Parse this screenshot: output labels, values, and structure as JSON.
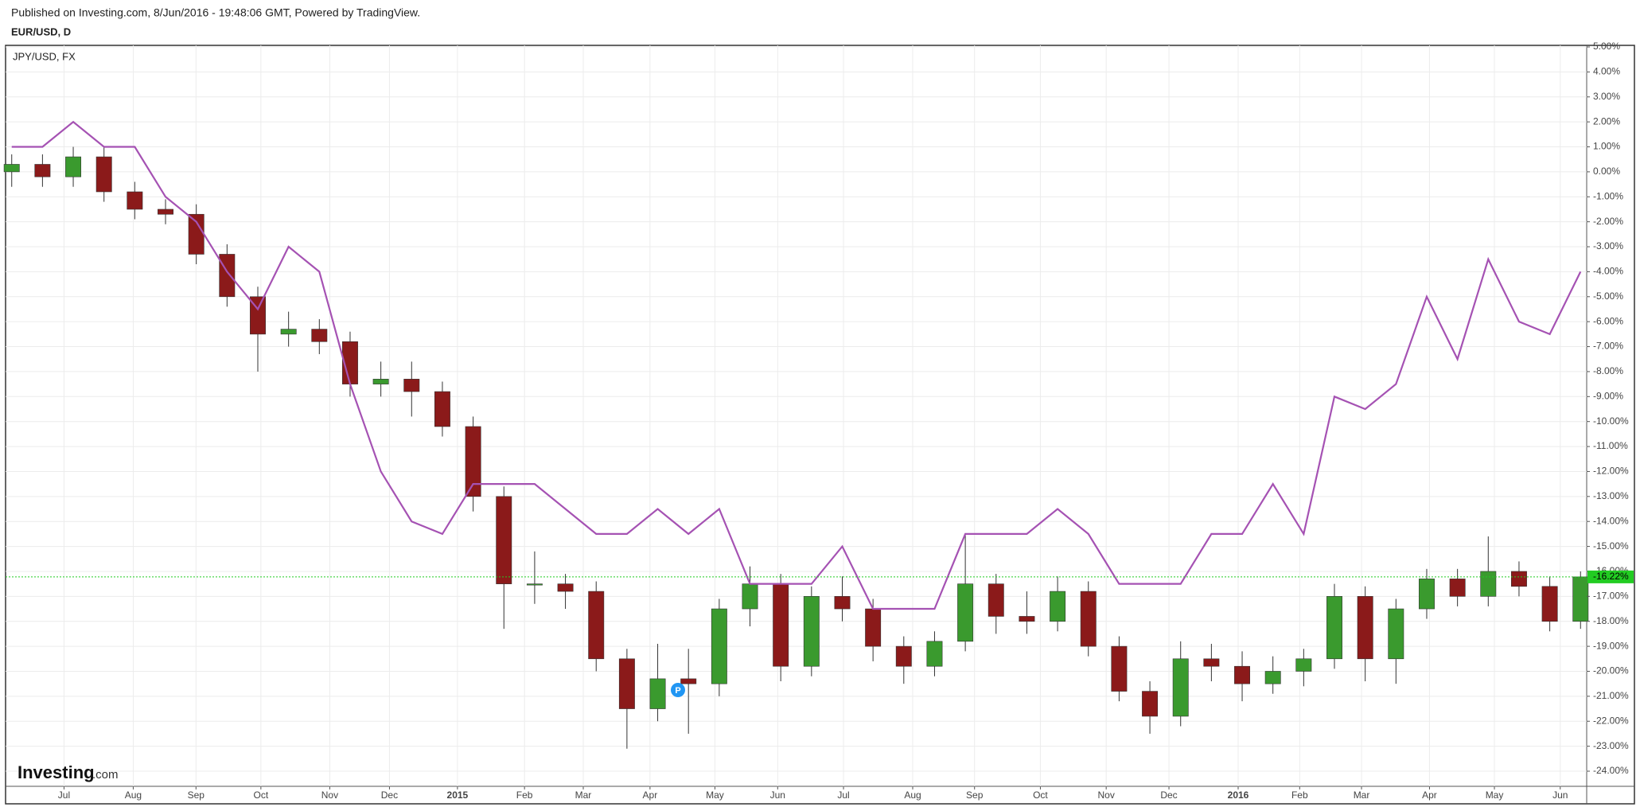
{
  "chart_data": {
    "type": "candlestick",
    "title": "Published on Investing.com, 8/Jun/2016 - 19:48:06 GMT, Powered by TradingView.",
    "logo": {
      "name": "Investing",
      "suffix": ".com"
    },
    "event_marker": "P",
    "grid": true,
    "xlim": [
      -0.2,
      51.2
    ],
    "xticks": [
      {
        "value": 1.7,
        "label": "Jul"
      },
      {
        "value": 3.95,
        "label": "Aug"
      },
      {
        "value": 5.99,
        "label": "Sep"
      },
      {
        "value": 8.1,
        "label": "Oct"
      },
      {
        "value": 10.34,
        "label": "Nov"
      },
      {
        "value": 12.28,
        "label": "Dec"
      },
      {
        "value": 14.49,
        "label": "2015"
      },
      {
        "value": 16.67,
        "label": "Feb"
      },
      {
        "value": 18.58,
        "label": "Mar"
      },
      {
        "value": 20.75,
        "label": "Apr"
      },
      {
        "value": 22.86,
        "label": "May"
      },
      {
        "value": 24.9,
        "label": "Jun"
      },
      {
        "value": 27.04,
        "label": "Jul"
      },
      {
        "value": 29.29,
        "label": "Aug"
      },
      {
        "value": 31.3,
        "label": "Sep"
      },
      {
        "value": 33.44,
        "label": "Oct"
      },
      {
        "value": 35.58,
        "label": "Nov"
      },
      {
        "value": 37.62,
        "label": "Dec"
      },
      {
        "value": 39.87,
        "label": "2016"
      },
      {
        "value": 41.87,
        "label": "Feb"
      },
      {
        "value": 43.88,
        "label": "Mar"
      },
      {
        "value": 46.09,
        "label": "Apr"
      },
      {
        "value": 48.2,
        "label": "May"
      },
      {
        "value": 50.34,
        "label": "Jun"
      }
    ],
    "ylim": [
      5.1,
      -24.9
    ],
    "yticks": [
      {
        "value": 5,
        "label": "5.00%"
      },
      {
        "value": 4,
        "label": "4.00%"
      },
      {
        "value": 3,
        "label": "3.00%"
      },
      {
        "value": 2,
        "label": "2.00%"
      },
      {
        "value": 1,
        "label": "1.00%"
      },
      {
        "value": 0,
        "label": "0.00%"
      },
      {
        "value": -1,
        "label": "-1.00%"
      },
      {
        "value": -2,
        "label": "-2.00%"
      },
      {
        "value": -3,
        "label": "-3.00%"
      },
      {
        "value": -4,
        "label": "-4.00%"
      },
      {
        "value": -5,
        "label": "-5.00%"
      },
      {
        "value": -6,
        "label": "-6.00%"
      },
      {
        "value": -7,
        "label": "-7.00%"
      },
      {
        "value": -8,
        "label": "-8.00%"
      },
      {
        "value": -9,
        "label": "-9.00%"
      },
      {
        "value": -10,
        "label": "-10.00%"
      },
      {
        "value": -11,
        "label": "-11.00%"
      },
      {
        "value": -12,
        "label": "-12.00%"
      },
      {
        "value": -13,
        "label": "-13.00%"
      },
      {
        "value": -14,
        "label": "-14.00%"
      },
      {
        "value": -15,
        "label": "-15.00%"
      },
      {
        "value": -16,
        "label": "-16.00%"
      },
      {
        "value": -17,
        "label": "-17.00%"
      },
      {
        "value": -18,
        "label": "-18.00%"
      },
      {
        "value": -19,
        "label": "-19.00%"
      },
      {
        "value": -20,
        "label": "-20.00%"
      },
      {
        "value": -21,
        "label": "-21.00%"
      },
      {
        "value": -22,
        "label": "-22.00%"
      },
      {
        "value": -23,
        "label": "-23.00%"
      },
      {
        "value": -24,
        "label": "-24.00%"
      }
    ],
    "last_price": {
      "value": -16.22,
      "label": "-16.22%",
      "color": "#22cc22"
    },
    "series": [
      {
        "name": "EUR/USD, D",
        "type": "candlestick",
        "up_color": "#3a9a2e",
        "down_color": "#8b1a1a",
        "open": [
          0.0,
          0.3,
          -0.2,
          0.6,
          -0.8,
          -1.5,
          -1.7,
          -3.3,
          -5.0,
          -6.5,
          -6.3,
          -6.8,
          -8.5,
          -8.3,
          -8.8,
          -10.2,
          -13.0,
          -16.5,
          -16.5,
          -16.8,
          -19.5,
          -21.5,
          -20.3,
          -20.5,
          -17.5,
          -16.5,
          -19.8,
          -17.0,
          -17.5,
          -19.0,
          -19.8,
          -18.8,
          -16.5,
          -17.8,
          -18.0,
          -16.8,
          -19.0,
          -20.8,
          -21.8,
          -19.5,
          -19.8,
          -20.5,
          -20.0,
          -19.5,
          -17.0,
          -19.5,
          -17.5,
          -16.3,
          -17.0,
          -16.0,
          -16.6,
          -18.0
        ],
        "high": [
          0.7,
          0.7,
          1.0,
          1.0,
          -0.4,
          -1.1,
          -1.3,
          -2.9,
          -4.6,
          -5.6,
          -5.9,
          -6.4,
          -7.6,
          -7.6,
          -8.4,
          -9.8,
          -12.6,
          -15.2,
          -16.1,
          -16.4,
          -19.1,
          -18.9,
          -19.1,
          -17.1,
          -15.8,
          -16.1,
          -16.6,
          -16.2,
          -17.1,
          -18.6,
          -18.4,
          -14.5,
          -16.1,
          -16.8,
          -16.2,
          -16.4,
          -18.6,
          -20.4,
          -18.8,
          -18.9,
          -19.2,
          -19.4,
          -19.1,
          -16.5,
          -16.6,
          -17.1,
          -15.9,
          -15.9,
          -14.6,
          -15.6,
          -16.2,
          -16.0
        ],
        "low": [
          -0.6,
          -0.6,
          -0.6,
          -1.2,
          -1.9,
          -2.1,
          -3.7,
          -5.4,
          -8.0,
          -7.0,
          -7.3,
          -9.0,
          -9.0,
          -9.8,
          -10.6,
          -13.6,
          -18.3,
          -17.3,
          -17.5,
          -20.0,
          -23.1,
          -22.0,
          -22.5,
          -21.0,
          -18.2,
          -20.4,
          -20.2,
          -18.0,
          -19.6,
          -20.5,
          -20.2,
          -19.2,
          -18.5,
          -18.5,
          -18.4,
          -19.4,
          -21.2,
          -22.5,
          -22.2,
          -20.4,
          -21.2,
          -20.9,
          -20.6,
          -19.9,
          -20.4,
          -20.5,
          -17.9,
          -17.4,
          -17.4,
          -17.0,
          -18.4,
          -18.3
        ],
        "close": [
          0.3,
          -0.2,
          0.6,
          -0.8,
          -1.5,
          -1.7,
          -3.3,
          -5.0,
          -6.5,
          -6.3,
          -6.8,
          -8.5,
          -8.3,
          -8.8,
          -10.2,
          -13.0,
          -16.5,
          -16.5,
          -16.8,
          -19.5,
          -21.5,
          -20.3,
          -20.5,
          -17.5,
          -16.5,
          -19.8,
          -17.0,
          -17.5,
          -19.0,
          -19.8,
          -18.8,
          -16.5,
          -17.8,
          -18.0,
          -16.8,
          -19.0,
          -20.8,
          -21.8,
          -19.5,
          -19.8,
          -20.5,
          -20.0,
          -19.5,
          -17.0,
          -19.5,
          -17.5,
          -16.3,
          -17.0,
          -16.0,
          -16.6,
          -18.0,
          -16.22
        ]
      },
      {
        "name": "JPY/USD, FX",
        "type": "line",
        "color": "#a552b3",
        "values": [
          1,
          1,
          2,
          1,
          1,
          -1,
          -2,
          -4,
          -5.5,
          -3,
          -4,
          -8.5,
          -12,
          -14,
          -14.5,
          -12.5,
          -12.5,
          -12.5,
          -13.5,
          -14.5,
          -14.5,
          -13.5,
          -14.5,
          -13.5,
          -16.5,
          -16.5,
          -16.5,
          -15,
          -17.5,
          -17.5,
          -17.5,
          -14.5,
          -14.5,
          -14.5,
          -13.5,
          -14.5,
          -16.5,
          -16.5,
          -16.5,
          -14.5,
          -14.5,
          -12.5,
          -14.5,
          -9,
          -9.5,
          -8.5,
          -5,
          -7.5,
          -3.5,
          -6,
          -6.5,
          -4
        ]
      }
    ]
  }
}
